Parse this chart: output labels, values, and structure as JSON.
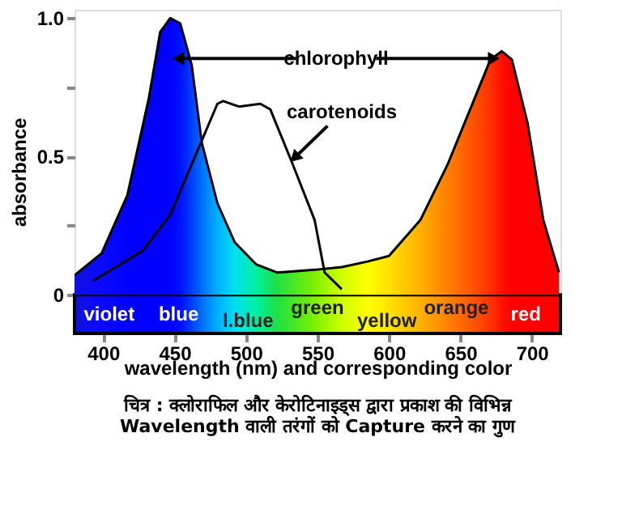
{
  "chart_data": {
    "type": "area",
    "title": "चित्र : क्लोराफिल और केरोटिनाइड्स द्वारा प्रकाश की विभिन्न Wavelength वाली तरंगों को Capture करने का गुण",
    "xlabel": "wavelength (nm) and corresponding color",
    "ylabel": "absorbance",
    "xlim": [
      380,
      720
    ],
    "xticks": [
      400,
      450,
      500,
      550,
      600,
      650,
      700
    ],
    "ylim": [
      -0.14,
      1.03
    ],
    "yticks": [
      0,
      {
        "value": 0.25,
        "label": null
      },
      {
        "value": 0.5,
        "label": "0.5"
      },
      {
        "value": 0.75,
        "label": null
      },
      {
        "value": 1.0,
        "label": "1.0"
      }
    ],
    "grid": false,
    "series": [
      {
        "name": "chlorophyll",
        "color": "#000000",
        "x": [
          380,
          399,
          417,
          432,
          440,
          447,
          454,
          462,
          469,
          480,
          492,
          507,
          522,
          548,
          567,
          585,
          600,
          622,
          641,
          660,
          671,
          679,
          686,
          697,
          708,
          719
        ],
        "values": [
          0.07,
          0.15,
          0.36,
          0.71,
          0.95,
          1.0,
          0.98,
          0.83,
          0.55,
          0.33,
          0.19,
          0.11,
          0.08,
          0.09,
          0.1,
          0.12,
          0.14,
          0.27,
          0.47,
          0.71,
          0.85,
          0.88,
          0.85,
          0.62,
          0.27,
          0.08
        ],
        "colors": [
          "#1010e0",
          "#0a0aff",
          "#0000ff",
          "#0000ff",
          "#0000ff",
          "#0000ff",
          "#0010ff",
          "#0040ff",
          "#0070ff",
          "#00b0ff",
          "#00e0ee",
          "#00f0a0",
          "#20e040",
          "#80f000",
          "#d0ff00",
          "#ffff00",
          "#ffe000",
          "#ffb000",
          "#ff8000",
          "#ff5000",
          "#ff3000",
          "#ff1000",
          "#ff0000",
          "#ff0000",
          "#ff0000",
          "#ff0000"
        ]
      },
      {
        "name": "carotenoids",
        "type": "line",
        "color": "#000000",
        "x": [
          393,
          428,
          447,
          466,
          480,
          484,
          495,
          510,
          517,
          532,
          548,
          555,
          567
        ],
        "values": [
          0.05,
          0.16,
          0.29,
          0.52,
          0.69,
          0.7,
          0.68,
          0.69,
          0.67,
          0.48,
          0.27,
          0.08,
          0.02
        ]
      }
    ],
    "bands": [
      {
        "axis": "y",
        "from": -0.14,
        "to": 0
      }
    ],
    "annotations": [
      "violet",
      "blue",
      "l.blue",
      "green",
      "yellow",
      "orange",
      "red"
    ]
  }
}
